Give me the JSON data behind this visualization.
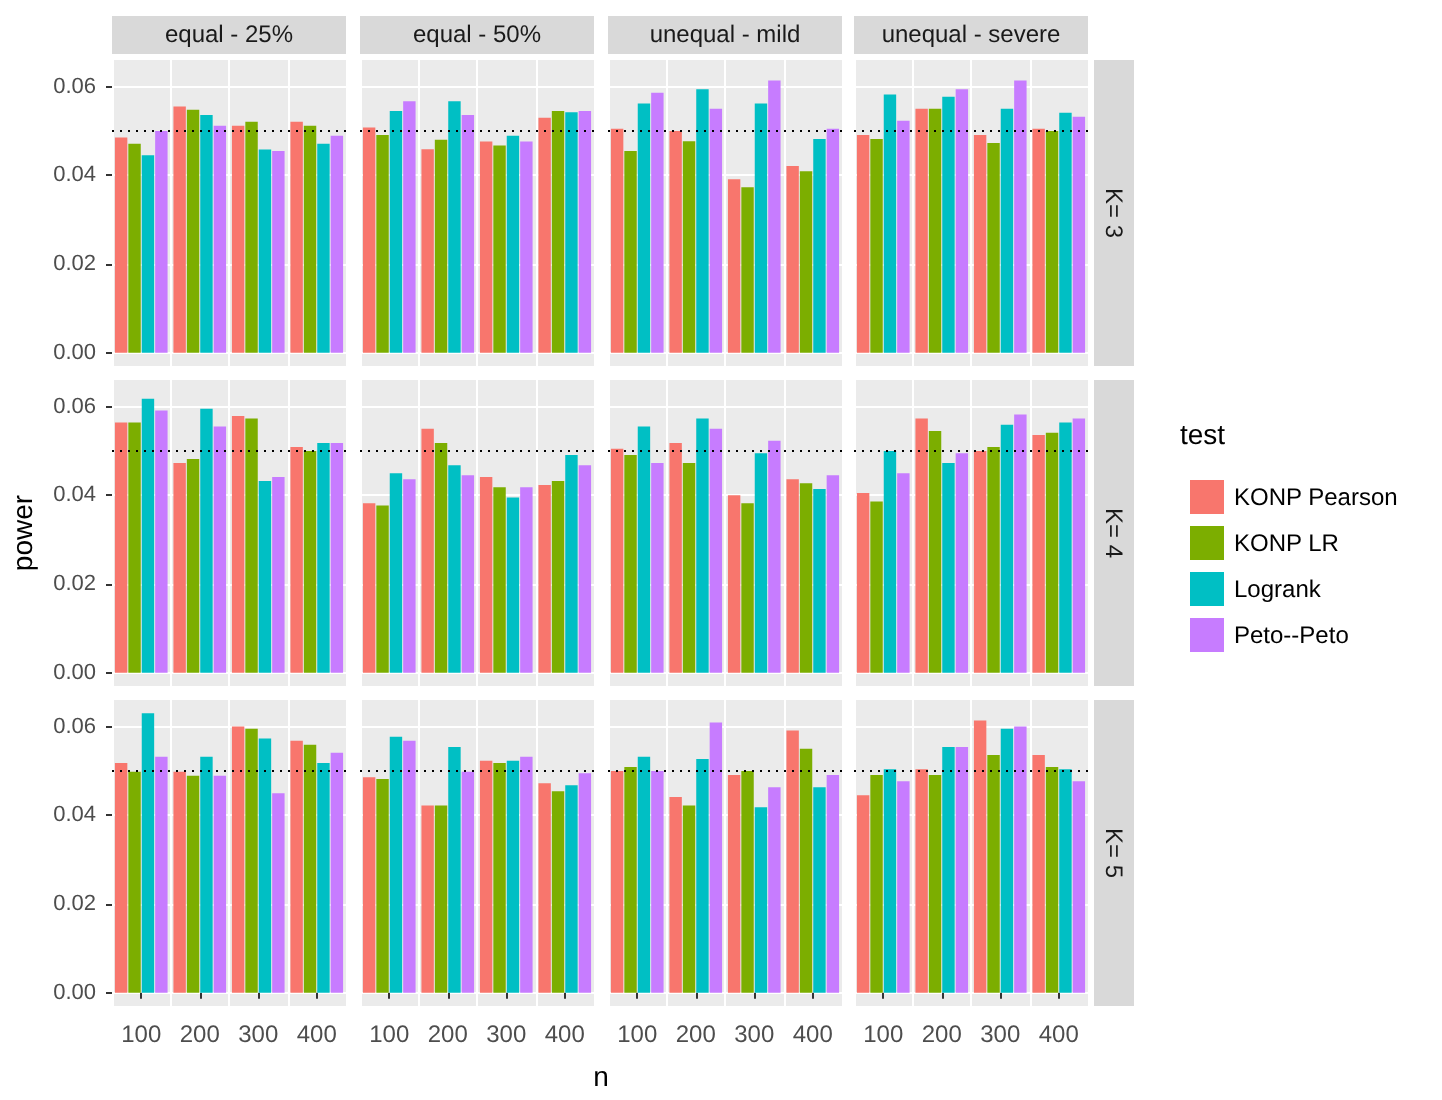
{
  "chart_data": [
    {
      "type": "bar",
      "title": "equal - 25%",
      "legend_title": "test",
      "legend": "right",
      "categories": [
        "100",
        "200",
        "300",
        "400"
      ],
      "series": [
        {
          "name": "KONP Pearson",
          "color": "#f8766d",
          "values": [
            0.0485,
            0.0555,
            0.0512,
            0.0521
          ]
        },
        {
          "name": "KONP LR",
          "color": "#7cae00",
          "values": [
            0.0471,
            0.0548,
            0.0521,
            0.0512
          ]
        },
        {
          "name": "Logrank",
          "color": "#00bfc4",
          "values": [
            0.0445,
            0.0536,
            0.0458,
            0.0471
          ]
        },
        {
          "name": "Peto--Peto",
          "color": "#c77cff",
          "values": [
            0.05,
            0.0512,
            0.0455,
            0.0489
          ]
        }
      ],
      "ylim": [
        -0.003,
        0.066
      ],
      "yticks": [
        {
          "value": 0,
          "label": "0.00"
        },
        {
          "value": 0.02,
          "label": "0.02"
        },
        {
          "value": 0.04,
          "label": "0.04"
        },
        {
          "value": 0.06,
          "label": "0.06"
        }
      ],
      "ref_lines": [
        {
          "axis": "y",
          "value": 0.05,
          "line_style": "dotted",
          "color": "#000000"
        }
      ],
      "grid": true,
      "tick_labels": "y"
    },
    {
      "type": "bar",
      "title": "equal - 50%",
      "categories": [
        "100",
        "200",
        "300",
        "400"
      ],
      "series": [
        {
          "name": "KONP Pearson",
          "color": "#f8766d",
          "values": [
            0.0508,
            0.0459,
            0.0476,
            0.053
          ]
        },
        {
          "name": "KONP LR",
          "color": "#7cae00",
          "values": [
            0.0491,
            0.048,
            0.0467,
            0.0545
          ]
        },
        {
          "name": "Logrank",
          "color": "#00bfc4",
          "values": [
            0.0545,
            0.0567,
            0.0489,
            0.0542
          ]
        },
        {
          "name": "Peto--Peto",
          "color": "#c77cff",
          "values": [
            0.0567,
            0.0536,
            0.0476,
            0.0545
          ]
        }
      ],
      "ylim": [
        -0.003,
        0.066
      ],
      "yticks": [
        {
          "value": 0,
          "label": null
        },
        {
          "value": 0.02,
          "label": null
        },
        {
          "value": 0.04,
          "label": null
        },
        {
          "value": 0.06,
          "label": null
        }
      ],
      "ref_lines": [
        {
          "axis": "y",
          "value": 0.05,
          "line_style": "dotted",
          "color": "#000000"
        }
      ],
      "grid": true,
      "tick_labels": false
    },
    {
      "type": "bar",
      "title": "unequal - mild",
      "categories": [
        "100",
        "200",
        "300",
        "400"
      ],
      "series": [
        {
          "name": "KONP Pearson",
          "color": "#f8766d",
          "values": [
            0.0505,
            0.05,
            0.0391,
            0.0421
          ]
        },
        {
          "name": "KONP LR",
          "color": "#7cae00",
          "values": [
            0.0455,
            0.0477,
            0.0373,
            0.0409
          ]
        },
        {
          "name": "Logrank",
          "color": "#00bfc4",
          "values": [
            0.0562,
            0.0594,
            0.0562,
            0.0482
          ]
        },
        {
          "name": "Peto--Peto",
          "color": "#c77cff",
          "values": [
            0.0586,
            0.055,
            0.0614,
            0.0505
          ]
        }
      ],
      "ylim": [
        -0.003,
        0.066
      ],
      "yticks": [
        {
          "value": 0,
          "label": null
        },
        {
          "value": 0.02,
          "label": null
        },
        {
          "value": 0.04,
          "label": null
        },
        {
          "value": 0.06,
          "label": null
        }
      ],
      "ref_lines": [
        {
          "axis": "y",
          "value": 0.05,
          "line_style": "dotted",
          "color": "#000000"
        }
      ],
      "grid": true,
      "tick_labels": false
    },
    {
      "type": "bar",
      "title": "unequal - severe",
      "y2label": "K= 3",
      "categories": [
        "100",
        "200",
        "300",
        "400"
      ],
      "series": [
        {
          "name": "KONP Pearson",
          "color": "#f8766d",
          "values": [
            0.0491,
            0.055,
            0.0491,
            0.0505
          ]
        },
        {
          "name": "KONP LR",
          "color": "#7cae00",
          "values": [
            0.0482,
            0.055,
            0.0473,
            0.05
          ]
        },
        {
          "name": "Logrank",
          "color": "#00bfc4",
          "values": [
            0.0582,
            0.0577,
            0.055,
            0.0541
          ]
        },
        {
          "name": "Peto--Peto",
          "color": "#c77cff",
          "values": [
            0.0523,
            0.0594,
            0.0614,
            0.0532
          ]
        }
      ],
      "ylim": [
        -0.003,
        0.066
      ],
      "yticks": [
        {
          "value": 0,
          "label": null
        },
        {
          "value": 0.02,
          "label": null
        },
        {
          "value": 0.04,
          "label": null
        },
        {
          "value": 0.06,
          "label": null
        }
      ],
      "ref_lines": [
        {
          "axis": "y",
          "value": 0.05,
          "line_style": "dotted",
          "color": "#000000"
        }
      ],
      "grid": true,
      "tick_labels": false
    },
    {
      "type": "bar",
      "ylabel": "power",
      "categories": [
        "100",
        "200",
        "300",
        "400"
      ],
      "series": [
        {
          "name": "KONP Pearson",
          "color": "#f8766d",
          "values": [
            0.0564,
            0.0473,
            0.0579,
            0.0509
          ]
        },
        {
          "name": "KONP LR",
          "color": "#7cae00",
          "values": [
            0.0564,
            0.0482,
            0.0573,
            0.05
          ]
        },
        {
          "name": "Logrank",
          "color": "#00bfc4",
          "values": [
            0.0618,
            0.0595,
            0.0432,
            0.0518
          ]
        },
        {
          "name": "Peto--Peto",
          "color": "#c77cff",
          "values": [
            0.0591,
            0.0555,
            0.0441,
            0.0518
          ]
        }
      ],
      "ylim": [
        -0.003,
        0.066
      ],
      "yticks": [
        {
          "value": 0,
          "label": "0.00"
        },
        {
          "value": 0.02,
          "label": "0.02"
        },
        {
          "value": 0.04,
          "label": "0.04"
        },
        {
          "value": 0.06,
          "label": "0.06"
        }
      ],
      "ref_lines": [
        {
          "axis": "y",
          "value": 0.05,
          "line_style": "dotted",
          "color": "#000000"
        }
      ],
      "grid": true,
      "tick_labels": "y"
    },
    {
      "type": "bar",
      "categories": [
        "100",
        "200",
        "300",
        "400"
      ],
      "series": [
        {
          "name": "KONP Pearson",
          "color": "#f8766d",
          "values": [
            0.0382,
            0.055,
            0.0441,
            0.0423
          ]
        },
        {
          "name": "KONP LR",
          "color": "#7cae00",
          "values": [
            0.0377,
            0.0518,
            0.0418,
            0.0432
          ]
        },
        {
          "name": "Logrank",
          "color": "#00bfc4",
          "values": [
            0.045,
            0.0468,
            0.0395,
            0.0491
          ]
        },
        {
          "name": "Peto--Peto",
          "color": "#c77cff",
          "values": [
            0.0436,
            0.0445,
            0.0418,
            0.0468
          ]
        }
      ],
      "ylim": [
        -0.003,
        0.066
      ],
      "yticks": [
        {
          "value": 0,
          "label": null
        },
        {
          "value": 0.02,
          "label": null
        },
        {
          "value": 0.04,
          "label": null
        },
        {
          "value": 0.06,
          "label": null
        }
      ],
      "ref_lines": [
        {
          "axis": "y",
          "value": 0.05,
          "line_style": "dotted",
          "color": "#000000"
        }
      ],
      "grid": true,
      "tick_labels": false
    },
    {
      "type": "bar",
      "categories": [
        "100",
        "200",
        "300",
        "400"
      ],
      "series": [
        {
          "name": "KONP Pearson",
          "color": "#f8766d",
          "values": [
            0.0505,
            0.0518,
            0.04,
            0.0436
          ]
        },
        {
          "name": "KONP LR",
          "color": "#7cae00",
          "values": [
            0.0491,
            0.0473,
            0.0382,
            0.0427
          ]
        },
        {
          "name": "Logrank",
          "color": "#00bfc4",
          "values": [
            0.0555,
            0.0573,
            0.0495,
            0.0414
          ]
        },
        {
          "name": "Peto--Peto",
          "color": "#c77cff",
          "values": [
            0.0473,
            0.055,
            0.0523,
            0.0445
          ]
        }
      ],
      "ylim": [
        -0.003,
        0.066
      ],
      "yticks": [
        {
          "value": 0,
          "label": null
        },
        {
          "value": 0.02,
          "label": null
        },
        {
          "value": 0.04,
          "label": null
        },
        {
          "value": 0.06,
          "label": null
        }
      ],
      "ref_lines": [
        {
          "axis": "y",
          "value": 0.05,
          "line_style": "dotted",
          "color": "#000000"
        }
      ],
      "grid": true,
      "tick_labels": false
    },
    {
      "type": "bar",
      "y2label": "K= 4",
      "categories": [
        "100",
        "200",
        "300",
        "400"
      ],
      "series": [
        {
          "name": "KONP Pearson",
          "color": "#f8766d",
          "values": [
            0.0405,
            0.0573,
            0.05,
            0.0536
          ]
        },
        {
          "name": "KONP LR",
          "color": "#7cae00",
          "values": [
            0.0386,
            0.0545,
            0.0509,
            0.0541
          ]
        },
        {
          "name": "Logrank",
          "color": "#00bfc4",
          "values": [
            0.05,
            0.0473,
            0.0559,
            0.0564
          ]
        },
        {
          "name": "Peto--Peto",
          "color": "#c77cff",
          "values": [
            0.045,
            0.0495,
            0.0582,
            0.0573
          ]
        }
      ],
      "ylim": [
        -0.003,
        0.066
      ],
      "yticks": [
        {
          "value": 0,
          "label": null
        },
        {
          "value": 0.02,
          "label": null
        },
        {
          "value": 0.04,
          "label": null
        },
        {
          "value": 0.06,
          "label": null
        }
      ],
      "ref_lines": [
        {
          "axis": "y",
          "value": 0.05,
          "line_style": "dotted",
          "color": "#000000"
        }
      ],
      "grid": true,
      "tick_labels": false
    },
    {
      "type": "bar",
      "categories": [
        "100",
        "200",
        "300",
        "400"
      ],
      "series": [
        {
          "name": "KONP Pearson",
          "color": "#f8766d",
          "values": [
            0.0518,
            0.0498,
            0.06,
            0.0568
          ]
        },
        {
          "name": "KONP LR",
          "color": "#7cae00",
          "values": [
            0.0498,
            0.0489,
            0.0595,
            0.0559
          ]
        },
        {
          "name": "Logrank",
          "color": "#00bfc4",
          "values": [
            0.063,
            0.0532,
            0.0573,
            0.0518
          ]
        },
        {
          "name": "Peto--Peto",
          "color": "#c77cff",
          "values": [
            0.0532,
            0.0489,
            0.045,
            0.0541
          ]
        }
      ],
      "ylim": [
        -0.003,
        0.066
      ],
      "yticks": [
        {
          "value": 0,
          "label": "0.00"
        },
        {
          "value": 0.02,
          "label": "0.02"
        },
        {
          "value": 0.04,
          "label": "0.04"
        },
        {
          "value": 0.06,
          "label": "0.06"
        }
      ],
      "ref_lines": [
        {
          "axis": "y",
          "value": 0.05,
          "line_style": "dotted",
          "color": "#000000"
        }
      ],
      "grid": true
    },
    {
      "type": "bar",
      "xlabel": "n",
      "categories": [
        "100",
        "200",
        "300",
        "400"
      ],
      "series": [
        {
          "name": "KONP Pearson",
          "color": "#f8766d",
          "values": [
            0.0486,
            0.0422,
            0.0523,
            0.0472
          ]
        },
        {
          "name": "KONP LR",
          "color": "#7cae00",
          "values": [
            0.0482,
            0.0422,
            0.0518,
            0.0454
          ]
        },
        {
          "name": "Logrank",
          "color": "#00bfc4",
          "values": [
            0.0577,
            0.0554,
            0.0523,
            0.0468
          ]
        },
        {
          "name": "Peto--Peto",
          "color": "#c77cff",
          "values": [
            0.0568,
            0.0498,
            0.0532,
            0.0495
          ]
        }
      ],
      "ylim": [
        -0.003,
        0.066
      ],
      "yticks": [
        {
          "value": 0,
          "label": null
        },
        {
          "value": 0.02,
          "label": null
        },
        {
          "value": 0.04,
          "label": null
        },
        {
          "value": 0.06,
          "label": null
        }
      ],
      "ref_lines": [
        {
          "axis": "y",
          "value": 0.05,
          "line_style": "dotted",
          "color": "#000000"
        }
      ],
      "grid": true,
      "tick_labels": "x"
    },
    {
      "type": "bar",
      "categories": [
        "100",
        "200",
        "300",
        "400"
      ],
      "series": [
        {
          "name": "KONP Pearson",
          "color": "#f8766d",
          "values": [
            0.05,
            0.0441,
            0.0491,
            0.0591
          ]
        },
        {
          "name": "KONP LR",
          "color": "#7cae00",
          "values": [
            0.0509,
            0.0422,
            0.05,
            0.055
          ]
        },
        {
          "name": "Logrank",
          "color": "#00bfc4",
          "values": [
            0.0532,
            0.0527,
            0.0418,
            0.0463
          ]
        },
        {
          "name": "Peto--Peto",
          "color": "#c77cff",
          "values": [
            0.05,
            0.0609,
            0.0463,
            0.0491
          ]
        }
      ],
      "ylim": [
        -0.003,
        0.066
      ],
      "yticks": [
        {
          "value": 0,
          "label": null
        },
        {
          "value": 0.02,
          "label": null
        },
        {
          "value": 0.04,
          "label": null
        },
        {
          "value": 0.06,
          "label": null
        }
      ],
      "ref_lines": [
        {
          "axis": "y",
          "value": 0.05,
          "line_style": "dotted",
          "color": "#000000"
        }
      ],
      "grid": true,
      "tick_labels": "x"
    },
    {
      "type": "bar",
      "y2label": "K= 5",
      "categories": [
        "100",
        "200",
        "300",
        "400"
      ],
      "series": [
        {
          "name": "KONP Pearson",
          "color": "#f8766d",
          "values": [
            0.0445,
            0.0504,
            0.0614,
            0.0536
          ]
        },
        {
          "name": "KONP LR",
          "color": "#7cae00",
          "values": [
            0.0491,
            0.0491,
            0.0536,
            0.0509
          ]
        },
        {
          "name": "Logrank",
          "color": "#00bfc4",
          "values": [
            0.0504,
            0.0554,
            0.0595,
            0.0504
          ]
        },
        {
          "name": "Peto--Peto",
          "color": "#c77cff",
          "values": [
            0.0477,
            0.0554,
            0.06,
            0.0477
          ]
        }
      ],
      "ylim": [
        -0.003,
        0.066
      ],
      "yticks": [
        {
          "value": 0,
          "label": null
        },
        {
          "value": 0.02,
          "label": null
        },
        {
          "value": 0.04,
          "label": null
        },
        {
          "value": 0.06,
          "label": null
        }
      ],
      "ref_lines": [
        {
          "axis": "y",
          "value": 0.05,
          "line_style": "dotted",
          "color": "#000000"
        }
      ],
      "grid": true,
      "tick_labels": "x"
    }
  ]
}
